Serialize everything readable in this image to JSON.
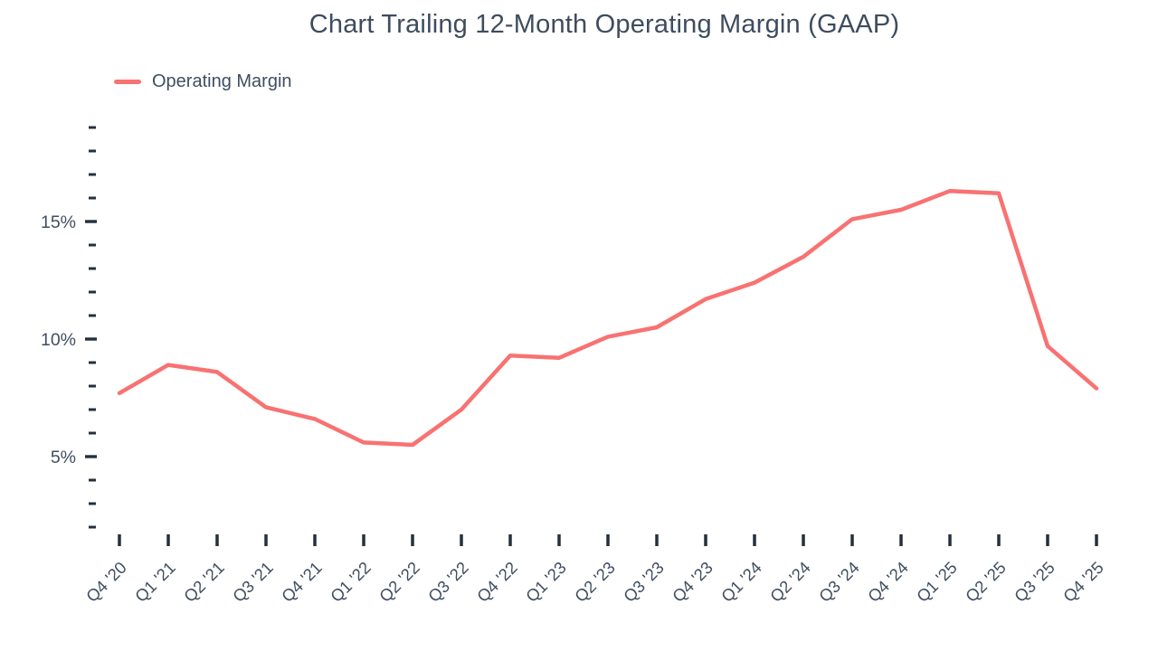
{
  "chart": {
    "title": "Chart Trailing 12-Month Operating Margin (GAAP)",
    "legend": [
      {
        "label": "Operating Margin",
        "color": "#f87272"
      }
    ]
  },
  "chart_data": {
    "type": "line",
    "title": "Chart Trailing 12-Month Operating Margin (GAAP)",
    "categories": [
      "Q4 '20",
      "Q1 '21",
      "Q2 '21",
      "Q3 '21",
      "Q4 '21",
      "Q1 '22",
      "Q2 '22",
      "Q3 '22",
      "Q4 '22",
      "Q1 '23",
      "Q2 '23",
      "Q3 '23",
      "Q4 '23",
      "Q1 '24",
      "Q2 '24",
      "Q3 '24",
      "Q4 '24",
      "Q1 '25",
      "Q2 '25",
      "Q3 '25",
      "Q4 '25"
    ],
    "series": [
      {
        "name": "Operating Margin",
        "color": "#f87272",
        "values": [
          7.7,
          8.9,
          8.6,
          7.1,
          6.6,
          5.6,
          5.5,
          7.0,
          9.3,
          9.2,
          10.1,
          10.5,
          11.7,
          12.4,
          13.5,
          15.1,
          15.5,
          16.3,
          16.2,
          9.7,
          7.9
        ]
      }
    ],
    "xlabel": "",
    "ylabel": "",
    "y_axis": {
      "unit": "%",
      "tick_min": 2,
      "tick_max": 19,
      "tick_step": 1,
      "labeled_ticks": [
        5,
        10,
        15
      ],
      "labels": [
        "5%",
        "10%",
        "15%"
      ]
    },
    "grid": false,
    "legend_position": "top-left"
  },
  "colors": {
    "background": "#ffffff",
    "title_text": "#3f4c5e",
    "axis_text": "#414e60",
    "tick": "#25303c",
    "line": "#f87272"
  }
}
